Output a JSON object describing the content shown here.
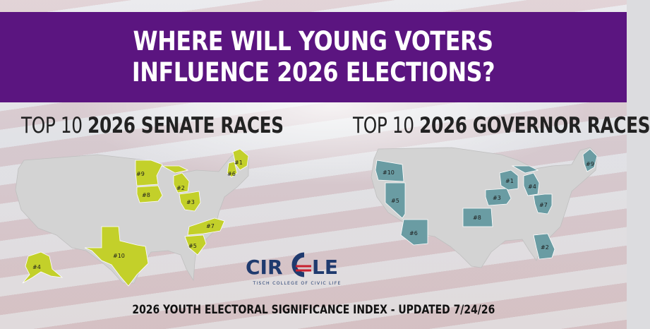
{
  "header": {
    "title_line1": "WHERE WILL YOUNG VOTERS",
    "title_line2": "INFLUENCE 2026 ELECTIONS?"
  },
  "senate": {
    "heading_prefix": "TOP 10 ",
    "heading_bold": "2026 SENATE RACES",
    "color": "#c3d02a",
    "races": [
      {
        "rank": "#1",
        "state": "Maine"
      },
      {
        "rank": "#2",
        "state": "Michigan"
      },
      {
        "rank": "#3",
        "state": "Ohio"
      },
      {
        "rank": "#4",
        "state": "Alaska"
      },
      {
        "rank": "#5",
        "state": "South Carolina"
      },
      {
        "rank": "#6",
        "state": "New Hampshire"
      },
      {
        "rank": "#7",
        "state": "North Carolina"
      },
      {
        "rank": "#8",
        "state": "Iowa"
      },
      {
        "rank": "#9",
        "state": "Minnesota"
      },
      {
        "rank": "#10",
        "state": "Texas"
      }
    ]
  },
  "governor": {
    "heading_prefix": "TOP 10 ",
    "heading_bold": "2026 GOVERNOR RACES",
    "color": "#6a9ca3",
    "races": [
      {
        "rank": "#1",
        "state": "Wisconsin"
      },
      {
        "rank": "#2",
        "state": "Georgia"
      },
      {
        "rank": "#3",
        "state": "Iowa"
      },
      {
        "rank": "#4",
        "state": "Michigan"
      },
      {
        "rank": "#5",
        "state": "Nevada"
      },
      {
        "rank": "#6",
        "state": "Arizona"
      },
      {
        "rank": "#7",
        "state": "Ohio"
      },
      {
        "rank": "#8",
        "state": "Kansas"
      },
      {
        "rank": "#9",
        "state": "Maine"
      },
      {
        "rank": "#10",
        "state": "Oregon"
      }
    ]
  },
  "base_map_color": "#d3d3d3",
  "logo": {
    "text_left": "CIR",
    "text_right": "LE",
    "tagline": "TISCH COLLEGE OF CIVIC LIFE",
    "navy": "#1f3a6e",
    "red": "#c8202f"
  },
  "footer": "2026 YOUTH ELECTORAL SIGNIFICANCE INDEX - UPDATED 7/24/26"
}
